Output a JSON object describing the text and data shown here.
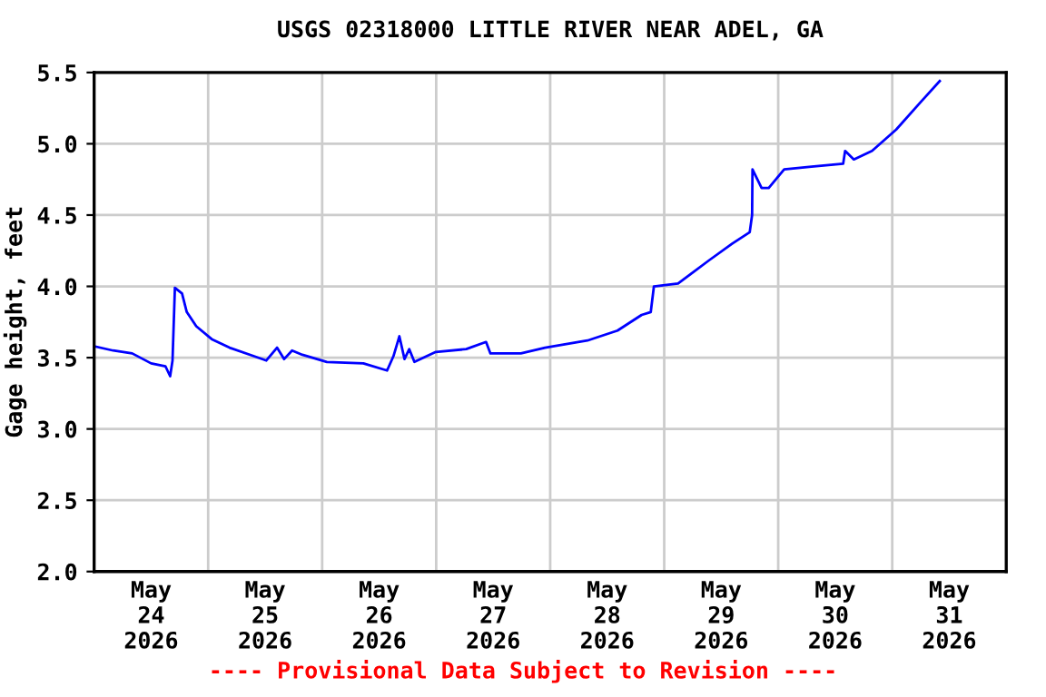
{
  "chart_data": {
    "type": "line",
    "title": "USGS 02318000 LITTLE RIVER NEAR ADEL, GA",
    "ylabel": "Gage height, feet",
    "annotations": [
      "---- Provisional Data Subject to Revision ----"
    ],
    "xlim": [
      "2026-05-24",
      "2026-06-01"
    ],
    "xticks": [
      {
        "value": "2026-05-24T12:00",
        "label": "May\n24\n2026"
      },
      {
        "value": "2026-05-25",
        "label": null
      },
      {
        "value": "2026-05-25T12:00",
        "label": "May\n25\n2026"
      },
      {
        "value": "2026-05-26",
        "label": null
      },
      {
        "value": "2026-05-26T12:00",
        "label": "May\n26\n2026"
      },
      {
        "value": "2026-05-27",
        "label": null
      },
      {
        "value": "2026-05-27T12:00",
        "label": "May\n27\n2026"
      },
      {
        "value": "2026-05-28",
        "label": null
      },
      {
        "value": "2026-05-28T12:00",
        "label": "May\n28\n2026"
      },
      {
        "value": "2026-05-29",
        "label": null
      },
      {
        "value": "2026-05-29T12:00",
        "label": "May\n29\n2026"
      },
      {
        "value": "2026-05-30",
        "label": null
      },
      {
        "value": "2026-05-30T12:00",
        "label": "May\n30\n2026"
      },
      {
        "value": "2026-05-31",
        "label": null
      },
      {
        "value": "2026-05-31T12:00",
        "label": "May\n31\n2026"
      }
    ],
    "ylim": [
      2.0,
      5.5
    ],
    "yticks": [
      {
        "value": 2.0,
        "label": "2.0"
      },
      2.5,
      {
        "value": 3.0,
        "label": "3.0"
      },
      3.5,
      {
        "value": 4.0,
        "label": "4.0"
      },
      4.5,
      {
        "value": 5.0,
        "label": "5.0"
      },
      5.5
    ],
    "grid": true,
    "legend": false,
    "series": [
      {
        "color": "#0000ff",
        "x": [
          "2026-05-24T00:00",
          "2026-05-24T04:00",
          "2026-05-24T08:00",
          "2026-05-24T12:00",
          "2026-05-24T15:00",
          "2026-05-24T16:00",
          "2026-05-24T16:30",
          "2026-05-24T17:00",
          "2026-05-24T18:30",
          "2026-05-24T19:30",
          "2026-05-24T21:30",
          "2026-05-25T00:45",
          "2026-05-25T04:30",
          "2026-05-25T09:40",
          "2026-05-25T12:15",
          "2026-05-25T14:30",
          "2026-05-25T16:00",
          "2026-05-25T17:40",
          "2026-05-25T19:50",
          "2026-05-26T01:00",
          "2026-05-26T08:40",
          "2026-05-26T13:40",
          "2026-05-26T15:00",
          "2026-05-26T16:15",
          "2026-05-26T17:20",
          "2026-05-26T18:20",
          "2026-05-26T19:25",
          "2026-05-26T23:55",
          "2026-05-27T06:20",
          "2026-05-27T10:30",
          "2026-05-27T11:25",
          "2026-05-27T17:50",
          "2026-05-27T22:55",
          "2026-05-28T07:50",
          "2026-05-28T14:10",
          "2026-05-28T19:15",
          "2026-05-28T21:10",
          "2026-05-28T21:50",
          "2026-05-29T02:55",
          "2026-05-29T09:20",
          "2026-05-29T14:20",
          "2026-05-29T18:00",
          "2026-05-29T18:30",
          "2026-05-29T18:35",
          "2026-05-29T20:30",
          "2026-05-29T22:00",
          "2026-05-30T01:15",
          "2026-05-30T07:00",
          "2026-05-30T13:40",
          "2026-05-30T14:05",
          "2026-05-30T15:55",
          "2026-05-30T19:45",
          "2026-05-31T00:50",
          "2026-05-31T05:55",
          "2026-05-31T10:00"
        ],
        "values": [
          3.58,
          3.55,
          3.53,
          3.46,
          3.44,
          3.37,
          3.48,
          3.99,
          3.95,
          3.82,
          3.72,
          3.63,
          3.57,
          3.51,
          3.48,
          3.57,
          3.49,
          3.55,
          3.52,
          3.47,
          3.46,
          3.41,
          3.51,
          3.65,
          3.49,
          3.56,
          3.47,
          3.54,
          3.56,
          3.61,
          3.53,
          3.53,
          3.57,
          3.62,
          3.69,
          3.8,
          3.82,
          4.0,
          4.02,
          4.18,
          4.3,
          4.38,
          4.5,
          4.82,
          4.69,
          4.69,
          4.82,
          4.84,
          4.86,
          4.95,
          4.89,
          4.95,
          5.1,
          5.29,
          5.44
        ]
      }
    ]
  }
}
